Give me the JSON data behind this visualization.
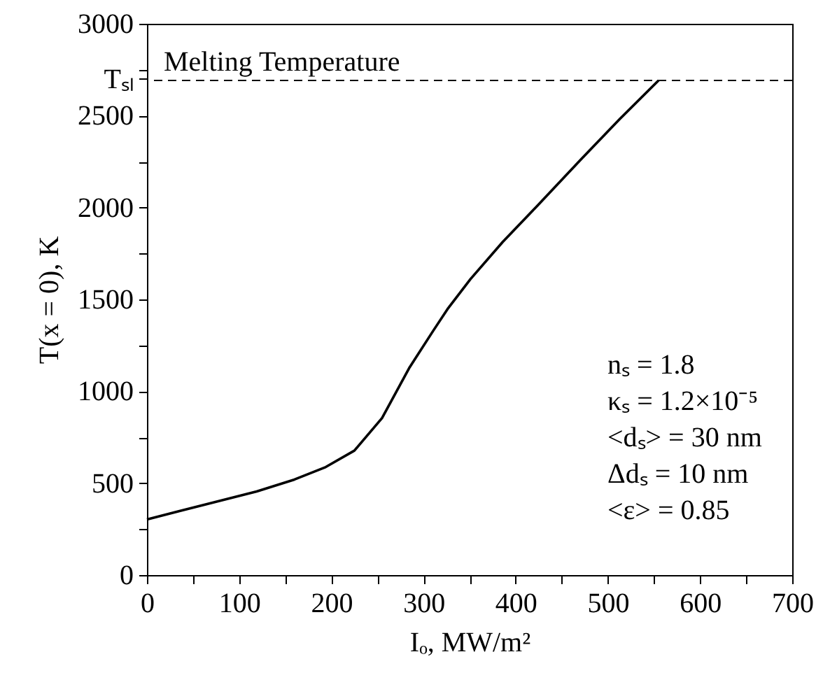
{
  "chart_data": {
    "type": "line",
    "xlabel": "Iₒ, MW/m²",
    "ylabel": "T(x = 0), K",
    "x": [
      0,
      60,
      119,
      160,
      194,
      225,
      255,
      285,
      311,
      326,
      351,
      386,
      422,
      472,
      513,
      555
    ],
    "series": [
      {
        "color": "#000000",
        "values": [
          303,
          380,
          455,
          520,
          588,
          677,
          854,
          1131,
          1333,
          1447,
          1611,
          1813,
          2002,
          2268,
          2482,
          2692
        ]
      }
    ],
    "xlim": [
      0,
      700
    ],
    "ylim": [
      0,
      3000
    ],
    "xticks": [
      0,
      {
        "value": 50,
        "label": null
      },
      100,
      {
        "value": 150,
        "label": null
      },
      200,
      {
        "value": 250,
        "label": null
      },
      300,
      {
        "value": 350,
        "label": null
      },
      400,
      {
        "value": 450,
        "label": null
      },
      500,
      {
        "value": 550,
        "label": null
      },
      600,
      {
        "value": 650,
        "label": null
      },
      700
    ],
    "yticks": [
      0,
      {
        "value": 250,
        "label": null
      },
      500,
      {
        "value": 750,
        "label": null
      },
      1000,
      {
        "value": 1250,
        "label": null
      },
      1500,
      {
        "value": 1750,
        "label": null
      },
      2000,
      {
        "value": 2250,
        "label": null
      },
      2500,
      {
        "value": 2700,
        "label": "Tₛₗ"
      },
      {
        "value": 2750,
        "label": null
      },
      3000
    ],
    "ref_lines": [
      {
        "axis": "y",
        "value": 2692,
        "label": "Melting Temperature",
        "color": "#000000",
        "line_style": "dashed"
      }
    ],
    "annotations": [
      "nₛ = 1.8",
      "κₛ = 1.2×10⁻⁵",
      "<dₛ> = 30 nm",
      "Δdₛ = 10 nm",
      "<ε> = 0.85"
    ],
    "grid": false,
    "line_style": "solid",
    "marker": "none"
  }
}
